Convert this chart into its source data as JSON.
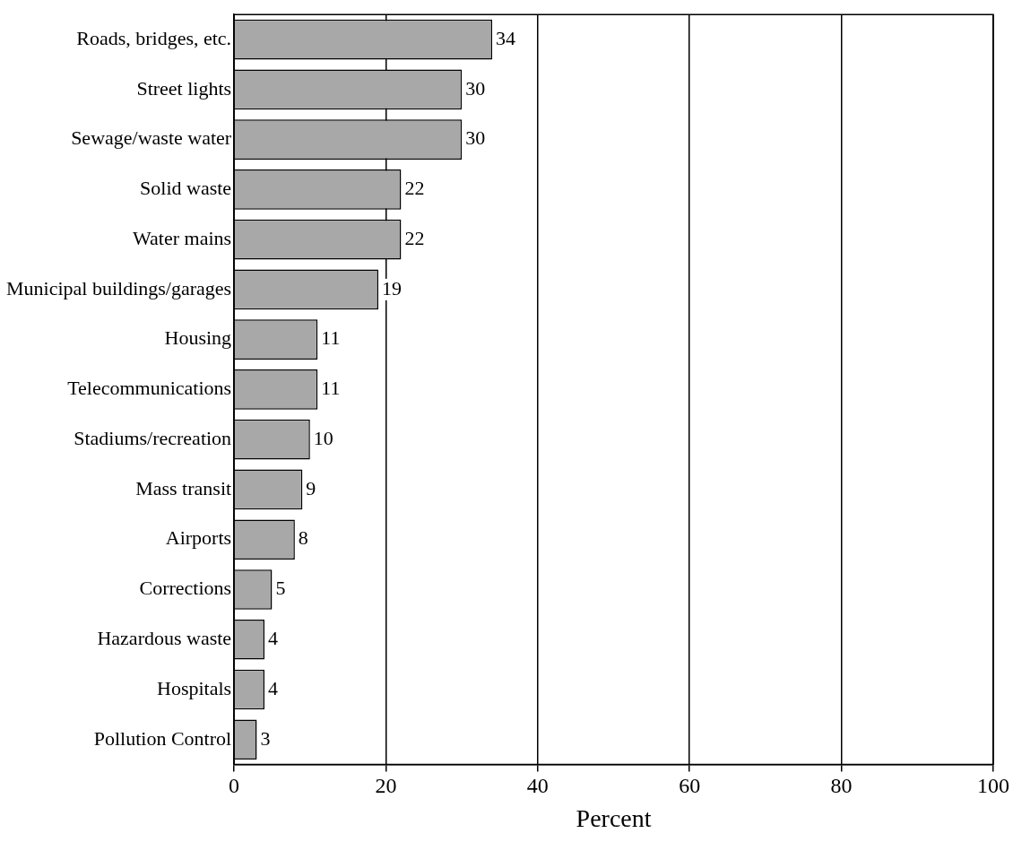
{
  "chart_data": {
    "type": "bar",
    "orientation": "horizontal",
    "xlabel": "Percent",
    "categories": [
      "Roads, bridges, etc.",
      "Street lights",
      "Sewage/waste water",
      "Solid waste",
      "Water mains",
      "Municipal buildings/garages",
      "Housing",
      "Telecommunications",
      "Stadiums/recreation",
      "Mass transit",
      "Airports",
      "Corrections",
      "Hazardous waste",
      "Hospitals",
      "Pollution Control"
    ],
    "values": [
      34,
      30,
      30,
      22,
      22,
      19,
      11,
      11,
      10,
      9,
      8,
      5,
      4,
      4,
      3
    ],
    "color": "#a8a8a8",
    "xlim": [
      0,
      100
    ],
    "xticks": [
      0,
      20,
      40,
      60,
      80,
      100
    ],
    "grid": "x",
    "legend": false,
    "data_labels": true
  }
}
